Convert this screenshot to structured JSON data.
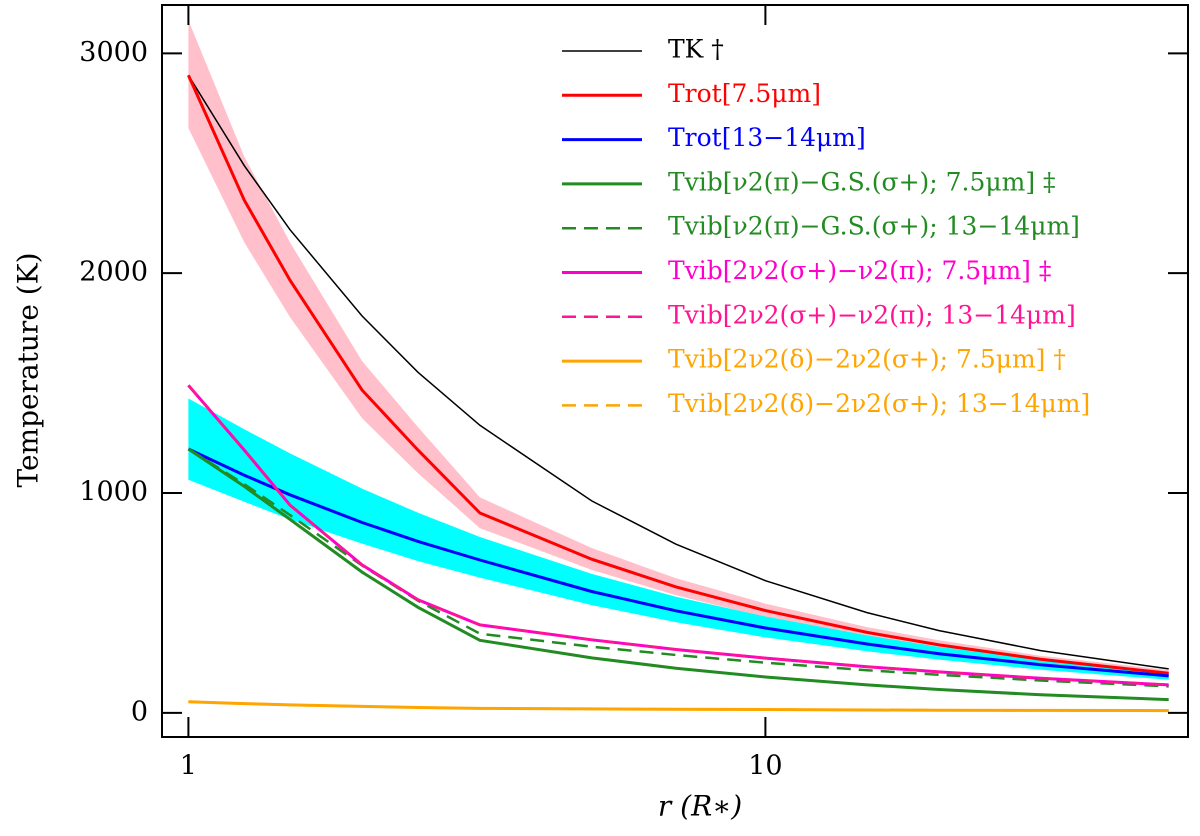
{
  "chart_data": {
    "type": "line",
    "x_label": "r (R∗)",
    "y_label": "Temperature (K)",
    "x": [
      1,
      1.25,
      1.5,
      2,
      2.5,
      3.2,
      5,
      7,
      10,
      15,
      20,
      30,
      50
    ],
    "xlim": [
      0.9,
      54
    ],
    "ylim": [
      -110,
      3220
    ],
    "xticks": [
      1,
      10
    ],
    "yticks": [
      0,
      1000,
      2000,
      3000
    ],
    "x_log": true,
    "legend": "upper right",
    "series": [
      {
        "name": "TK †",
        "color": "#000000",
        "width": 1.5,
        "dash": false,
        "values": [
          2900,
          2489,
          2198,
          1805,
          1549,
          1308,
          964,
          767,
          601,
          456,
          374,
          283,
          200
        ]
      },
      {
        "name": "Trot[7.5μm]",
        "color": "#ff0000",
        "width": 3,
        "dash": false,
        "values": [
          2900,
          2332,
          1968,
          1468,
          1195,
          909,
          699,
          573,
          465,
          366,
          309,
          244,
          180
        ],
        "band": {
          "color": "#ffc0cb",
          "lower": [
            2660,
            2140,
            1800,
            1340,
            1090,
            840,
            650,
            535,
            435,
            343,
            290,
            228,
            165
          ],
          "upper": [
            3150,
            2530,
            2140,
            1600,
            1300,
            980,
            750,
            612,
            497,
            390,
            330,
            260,
            195
          ]
        }
      },
      {
        "name": "Trot[13−14μm]",
        "color": "#0000ff",
        "width": 3,
        "dash": false,
        "values": [
          1200,
          1081,
          992,
          866,
          780,
          695,
          552,
          464,
          386,
          313,
          269,
          219,
          168
        ],
        "band": {
          "color": "#00ffff",
          "lower": [
            1060,
            960,
            880,
            770,
            690,
            615,
            490,
            412,
            343,
            280,
            242,
            196,
            150
          ],
          "upper": [
            1430,
            1290,
            1180,
            1020,
            910,
            800,
            632,
            528,
            438,
            352,
            300,
            243,
            185
          ]
        }
      },
      {
        "name": "Tvib[ν2(π)−G.S.(σ+); 7.5μm] ‡",
        "color": "#228b22",
        "width": 3,
        "dash": false,
        "values": [
          1200,
          1030,
          880,
          640,
          480,
          330,
          250,
          203,
          163,
          127,
          106,
          82,
          60
        ]
      },
      {
        "name": "Tvib[ν2(π)−G.S.(σ+); 13−14μm]",
        "color": "#228b22",
        "width": 2.5,
        "dash": true,
        "values": [
          1200,
          1040,
          900,
          670,
          510,
          360,
          301,
          263,
          228,
          194,
          173,
          147,
          120
        ]
      },
      {
        "name": "Tvib[2ν2(σ+)−ν2(π); 7.5μm] ‡",
        "color": "#ff00cc",
        "width": 3,
        "dash": false,
        "values": [
          1490,
          1195,
          945,
          673,
          514,
          400,
          332,
          288,
          249,
          210,
          186,
          157,
          127
        ]
      },
      {
        "name": "Tvib[2ν2(σ+)−ν2(π); 13−14μm]",
        "color": "#ff1493",
        "width": 2.5,
        "dash": true,
        "values": [
          1490,
          1195,
          945,
          673,
          514,
          400,
          332,
          288,
          249,
          210,
          186,
          157,
          127
        ]
      },
      {
        "name": "Tvib[2ν2(δ)−2ν2(σ+); 7.5μm] †",
        "color": "#ffa500",
        "width": 3,
        "dash": false,
        "values": [
          50,
          42,
          36,
          29,
          24,
          20,
          18,
          16,
          15,
          13,
          12,
          11,
          10
        ]
      },
      {
        "name": "Tvib[2ν2(δ)−2ν2(σ+); 13−14μm]",
        "color": "#ffa500",
        "width": 2.5,
        "dash": true,
        "values": [
          50,
          42,
          36,
          29,
          24,
          20,
          18,
          16,
          15,
          13,
          12,
          11,
          10
        ]
      }
    ]
  }
}
